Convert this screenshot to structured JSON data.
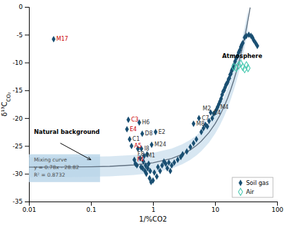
{
  "chart_data": {
    "type": "scatter",
    "xlabel": "1/%CO2",
    "ylabel": "δ¹³CCO₂",
    "log": "x",
    "xlim": [
      0.01,
      100
    ],
    "ylim": [
      -35,
      0
    ],
    "xticks": [
      0.01,
      0.1,
      1,
      10,
      100
    ],
    "yticks": [
      0,
      -5,
      -10,
      -15,
      -20,
      -25,
      -30,
      -35
    ],
    "grid": false,
    "legend": "lower right",
    "series": [
      {
        "type": "area",
        "color": "#b8d4e8",
        "x": [
          0.01,
          0.02,
          0.05,
          0.1,
          0.2,
          0.5,
          1,
          2,
          3,
          4,
          5,
          6,
          8,
          10,
          12,
          14,
          16,
          18,
          20,
          22,
          24,
          26,
          28,
          30,
          32,
          34
        ],
        "lower": [
          -30.6122,
          -30.6044,
          -30.581,
          -30.542,
          -30.464,
          -30.23,
          -29.84,
          -29.06,
          -28.28,
          -27.5,
          -26.72,
          -25.94,
          -24.38,
          -22.82,
          -21.26,
          -19.7,
          -18.14,
          -16.58,
          -15.02,
          -13.46,
          -11.9,
          -10.34,
          -8.78,
          -7.22,
          -5.66,
          -4.1
        ],
        "upper": [
          -27.0122,
          -27.0044,
          -26.981,
          -26.942,
          -26.864,
          -26.63,
          -26.24,
          -25.46,
          -24.68,
          -23.9,
          -23.12,
          -22.34,
          -20.78,
          -19.22,
          -17.66,
          -16.1,
          -14.54,
          -12.98,
          -11.42,
          -9.86,
          -8.3,
          -6.74,
          -5.18,
          -3.62,
          -2.06,
          -0.5
        ]
      },
      {
        "type": "line",
        "color": "#607080",
        "x": [
          0.01,
          0.02,
          0.05,
          0.1,
          0.2,
          0.5,
          1,
          2,
          3,
          4,
          5,
          6,
          8,
          10,
          12,
          14,
          16,
          18,
          20,
          22,
          24,
          26,
          28,
          30,
          32,
          34,
          36.8
        ],
        "values": [
          -28.8122,
          -28.8044,
          -28.781,
          -28.742,
          -28.664,
          -28.43,
          -28.04,
          -27.26,
          -26.48,
          -25.7,
          -24.92,
          -24.14,
          -22.58,
          -21.02,
          -19.46,
          -17.9,
          -16.34,
          -14.78,
          -13.22,
          -11.66,
          -10.1,
          -8.54,
          -6.98,
          -5.42,
          -3.86,
          -2.3,
          -0.116
        ]
      },
      {
        "name": "Soil gas",
        "type": "scatter",
        "marker": "diamond",
        "color": "#1a4f72",
        "x": [
          0.025,
          0.4,
          0.38,
          0.42,
          0.45,
          0.5,
          0.52,
          0.55,
          0.57,
          0.6,
          0.62,
          0.64,
          0.65,
          0.67,
          0.68,
          0.7,
          0.72,
          0.74,
          0.76,
          0.78,
          0.8,
          0.82,
          0.85,
          0.88,
          0.9,
          0.93,
          0.95,
          1.0,
          1.05,
          1.1,
          1.15,
          1.2,
          1.3,
          1.4,
          1.5,
          1.6,
          1.7,
          1.8,
          1.9,
          2.0,
          2.2,
          2.5,
          2.8,
          3.0,
          3.5,
          4.0,
          4.5,
          4.5,
          5.0,
          5.5,
          6.0,
          6.5,
          7.0,
          7.5,
          8.0,
          8.5,
          9.0,
          9.5,
          10.0,
          10.5,
          11.0,
          11.5,
          12.0,
          12.5,
          13.0,
          13.5,
          14.0,
          14.5,
          15.0,
          15.5,
          16.0,
          16.5,
          17.0,
          17.5,
          18.0,
          18.5,
          19.0,
          19.5,
          20.0,
          21.0,
          22.0,
          23.0,
          24.0,
          25.0,
          26.0,
          27.0,
          28.0,
          30.0,
          32.0,
          35.0,
          38.0,
          40.0,
          42.0,
          45.0,
          48.0
        ],
        "values": [
          -5.8,
          -20.3,
          -22.0,
          -23.8,
          -25.0,
          -27.5,
          -28.2,
          -28.5,
          -25.5,
          -20.8,
          -27.2,
          -28.8,
          -25.5,
          -22.8,
          -29.0,
          -27.8,
          -26.8,
          -29.5,
          -28.5,
          -30.0,
          -26.5,
          -29.0,
          -28.2,
          -30.8,
          -29.5,
          -31.5,
          -24.8,
          -31.2,
          -29.8,
          -22.5,
          -30.5,
          -28.8,
          -29.5,
          -28.5,
          -27.8,
          -28.2,
          -29.0,
          -28.0,
          -29.5,
          -28.5,
          -28.0,
          -27.5,
          -27.0,
          -26.5,
          -26.0,
          -25.2,
          -24.5,
          -21.0,
          -23.8,
          -20.0,
          -22.5,
          -21.8,
          -21.2,
          -21.5,
          -20.5,
          -19.0,
          -20.0,
          -19.2,
          -19.0,
          -18.5,
          -18.0,
          -17.5,
          -17.0,
          -16.5,
          -15.8,
          -15.2,
          -15.0,
          -14.5,
          -14.0,
          -13.8,
          -13.5,
          -13.0,
          -12.8,
          -12.2,
          -12.0,
          -11.5,
          -11.2,
          -11.0,
          -10.5,
          -9.8,
          -9.2,
          -8.8,
          -8.2,
          -7.8,
          -7.2,
          -6.8,
          -6.5,
          -5.5,
          -5.2,
          -5.0,
          -5.2,
          -5.5,
          -6.0,
          -6.5,
          -7.0
        ]
      },
      {
        "name": "Air",
        "type": "scatter",
        "marker": "diamond-open",
        "color": "#48c9b0",
        "x": [
          20.0,
          22.0,
          24.0,
          26.0,
          28.0,
          30.0,
          32.0,
          34.0
        ],
        "values": [
          -10.8,
          -11.0,
          -10.5,
          -10.2,
          -10.8,
          -11.2,
          -10.5,
          -11.0
        ]
      }
    ],
    "regions": [
      {
        "x": [
          0.01,
          0.14
        ],
        "y": [
          -31.5,
          -26.5
        ],
        "color": "#b8d4e8"
      }
    ],
    "arrows": [
      {
        "x": [
          0.032,
          0.1
        ],
        "y": [
          -24.5,
          -27.5
        ]
      }
    ],
    "annotations": [
      {
        "text": "Atmosphere",
        "x": 13.0,
        "y": -9.2
      },
      {
        "text": "Natural background",
        "x": 0.012,
        "y": -22.8
      },
      {
        "text": "Mixing curve",
        "x": 0.012,
        "y": -27.8,
        "color": "#505050"
      },
      {
        "text": "y = 0.78x - 28.82",
        "x": 0.012,
        "y": -29.2,
        "color": "#505050"
      },
      {
        "text": "R² = 0.8732",
        "x": 0.012,
        "y": -30.5,
        "color": "#505050"
      }
    ],
    "point_labels": [
      {
        "text": "M17",
        "x": 0.025,
        "y": -5.8,
        "color": "#cc0000"
      },
      {
        "text": "C3",
        "x": 0.4,
        "y": -20.3,
        "color": "#cc0000"
      },
      {
        "text": "E4",
        "x": 0.38,
        "y": -22.0,
        "color": "#cc0000"
      },
      {
        "text": "C1",
        "x": 0.42,
        "y": -23.8,
        "color": "#333333"
      },
      {
        "text": "A5",
        "x": 0.45,
        "y": -25.0,
        "color": "#cc0000"
      },
      {
        "text": "F4",
        "x": 0.5,
        "y": -27.5,
        "color": "#cc0000"
      },
      {
        "text": "H6",
        "x": 0.6,
        "y": -20.8,
        "color": "#333333"
      },
      {
        "text": "D8",
        "x": 0.67,
        "y": -22.8,
        "color": "#333333"
      },
      {
        "text": "I8",
        "x": 0.65,
        "y": -25.5,
        "color": "#333333"
      },
      {
        "text": "M1",
        "x": 0.72,
        "y": -26.8,
        "color": "#333333"
      },
      {
        "text": "F8",
        "x": 0.8,
        "y": -26.5,
        "color": "#333333"
      },
      {
        "text": "E2",
        "x": 1.1,
        "y": -22.5,
        "color": "#333333"
      },
      {
        "text": "M24",
        "x": 0.95,
        "y": -24.8,
        "color": "#333333"
      },
      {
        "text": "M8",
        "x": 4.5,
        "y": -21.0,
        "color": "#333333"
      },
      {
        "text": "C7",
        "x": 5.5,
        "y": -20.0,
        "color": "#333333"
      },
      {
        "text": "C4",
        "x": 8.5,
        "y": -19.0,
        "color": "#333333"
      },
      {
        "text": "M2",
        "x": 9.5,
        "y": -19.2,
        "color": "#333333"
      },
      {
        "text": "M4",
        "x": 11.0,
        "y": -18.0,
        "color": "#333333"
      }
    ]
  }
}
